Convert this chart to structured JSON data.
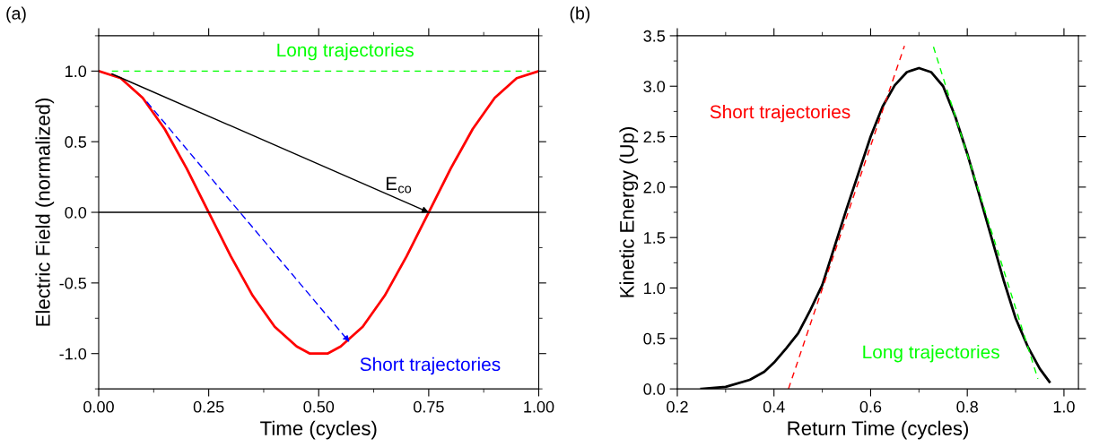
{
  "chart_data": [
    {
      "type": "line",
      "xlabel": "Time (cycles)",
      "ylabel": "Electric Field (normalized)",
      "xlim": [
        0,
        1
      ],
      "ylim": [
        -1.25,
        1.25
      ],
      "xticks": [
        {
          "value": 0,
          "label": "0.00"
        },
        {
          "value": 0.25,
          "label": "0.25"
        },
        {
          "value": 0.5,
          "label": "0.50"
        },
        {
          "value": 0.75,
          "label": "0.75"
        },
        {
          "value": 1,
          "label": "1.00"
        }
      ],
      "yticks": [
        {
          "value": -1,
          "label": "-1.0"
        },
        {
          "value": -0.5,
          "label": "-0.5"
        },
        {
          "value": 0,
          "label": "0.0"
        },
        {
          "value": 0.5,
          "label": "0.5"
        },
        {
          "value": 1,
          "label": "1.0"
        }
      ],
      "grid": false,
      "legend": false,
      "ref_lines": [
        {
          "axis": "y",
          "value": 0,
          "color": "#000000",
          "line_style": "solid"
        }
      ],
      "annotations": [
        "(a)",
        {
          "text": "E$_{co}$",
          "x": 0.75,
          "y": 0
        },
        {
          "text": "Short trajectories",
          "x": 0.57,
          "y": -0.92
        }
      ],
      "series": [
        {
          "color": "#ff0000",
          "line_style": "solid",
          "x": [
            0,
            0.05,
            0.1,
            0.15,
            0.2,
            0.25,
            0.3,
            0.35,
            0.4,
            0.45,
            0.48,
            0.52,
            0.55,
            0.6,
            0.65,
            0.7,
            0.75,
            0.8,
            0.85,
            0.9,
            0.95,
            1
          ],
          "values": [
            1,
            0.95,
            0.81,
            0.59,
            0.31,
            0,
            -0.31,
            -0.59,
            -0.81,
            -0.95,
            -1,
            -1,
            -0.95,
            -0.81,
            -0.59,
            -0.31,
            0,
            0.31,
            0.59,
            0.81,
            0.95,
            1
          ]
        },
        {
          "name": "Long trajectories",
          "color": "#00ff00",
          "line_style": "dashed",
          "x": [
            0.03,
            0.98
          ],
          "values": [
            1,
            1
          ]
        }
      ]
    },
    {
      "type": "line",
      "xlabel": "Return Time (cycles)",
      "ylabel": "Kinetic Energy (Up)",
      "xlim": [
        0.2,
        1.03
      ],
      "ylim": [
        0,
        3.5
      ],
      "xticks": [
        0.2,
        0.4,
        0.6,
        0.8,
        {
          "value": 1,
          "label": "1.0"
        }
      ],
      "yticks": [
        {
          "value": 0,
          "label": "0.0"
        },
        0.5,
        {
          "value": 1,
          "label": "1.0"
        },
        1.5,
        {
          "value": 2,
          "label": "2.0"
        },
        2.5,
        {
          "value": 3,
          "label": "3.0"
        },
        3.5
      ],
      "grid": false,
      "legend": false,
      "annotations": [
        "(b)"
      ],
      "series": [
        {
          "color": "#000000",
          "line_style": "solid",
          "x": [
            0.25,
            0.3,
            0.35,
            0.38,
            0.4,
            0.425,
            0.45,
            0.475,
            0.5,
            0.55,
            0.6,
            0.625,
            0.65,
            0.675,
            0.7,
            0.725,
            0.75,
            0.775,
            0.8,
            0.825,
            0.85,
            0.875,
            0.9,
            0.925,
            0.95,
            0.97
          ],
          "values": [
            0,
            0.02,
            0.09,
            0.17,
            0.26,
            0.4,
            0.55,
            0.78,
            1.03,
            1.78,
            2.5,
            2.8,
            3.01,
            3.14,
            3.18,
            3.14,
            3.0,
            2.7,
            2.33,
            1.92,
            1.5,
            1.08,
            0.7,
            0.42,
            0.2,
            0.07
          ]
        },
        {
          "name": "Short trajectories",
          "color": "#ff0000",
          "line_style": "dashed",
          "x": [
            0.43,
            0.67
          ],
          "values": [
            0,
            3.4
          ]
        },
        {
          "name": "Long trajectories",
          "color": "#00ff00",
          "line_style": "dashed",
          "x": [
            0.73,
            0.946
          ],
          "values": [
            3.39,
            0.1
          ]
        }
      ]
    }
  ]
}
